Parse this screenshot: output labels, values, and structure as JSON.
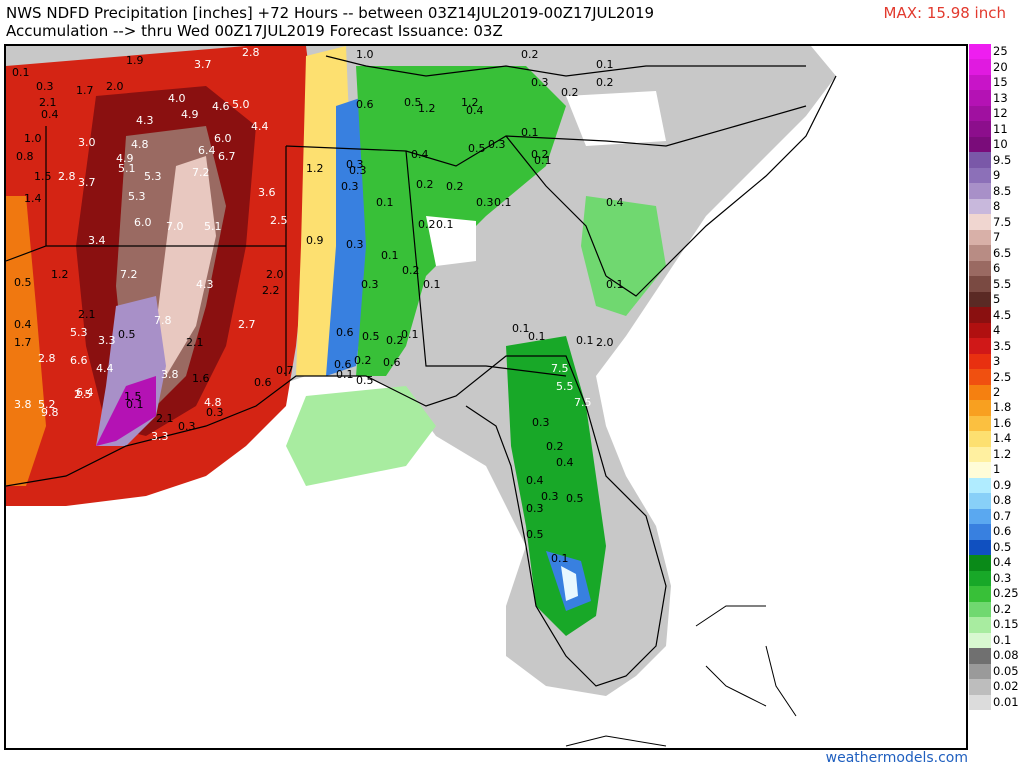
{
  "header": {
    "title_line1": "NWS NDFD Precipitation [inches] +72 Hours -- between 03Z14JUL2019-00Z17JUL2019",
    "title_line2": "Accumulation --> thru Wed 00Z17JUL2019   Forecast Issuance: 03Z",
    "max_label": "MAX: 15.98 inch"
  },
  "legend": {
    "entries": [
      {
        "label": "25",
        "color": "#ee1ef0"
      },
      {
        "label": "20",
        "color": "#e01ae0"
      },
      {
        "label": "15",
        "color": "#c814c8"
      },
      {
        "label": "13",
        "color": "#b412b4"
      },
      {
        "label": "12",
        "color": "#a010a0"
      },
      {
        "label": "11",
        "color": "#8c0e8c"
      },
      {
        "label": "10",
        "color": "#7a0c7a"
      },
      {
        "label": "9.5",
        "color": "#7a58a8"
      },
      {
        "label": "9",
        "color": "#8c70b8"
      },
      {
        "label": "8.5",
        "color": "#a890c8"
      },
      {
        "label": "8",
        "color": "#c8b8dc"
      },
      {
        "label": "7.5",
        "color": "#f0d6d0"
      },
      {
        "label": "7",
        "color": "#d8b0a8"
      },
      {
        "label": "6.5",
        "color": "#b88c84"
      },
      {
        "label": "6",
        "color": "#9a6a62"
      },
      {
        "label": "5.5",
        "color": "#7a4a42"
      },
      {
        "label": "5",
        "color": "#5a2a24"
      },
      {
        "label": "4.5",
        "color": "#8a1010"
      },
      {
        "label": "4",
        "color": "#b01010"
      },
      {
        "label": "3.5",
        "color": "#d01818"
      },
      {
        "label": "3",
        "color": "#e83010"
      },
      {
        "label": "2.5",
        "color": "#f05010"
      },
      {
        "label": "2",
        "color": "#f58010"
      },
      {
        "label": "1.8",
        "color": "#f8a020"
      },
      {
        "label": "1.6",
        "color": "#fbc040"
      },
      {
        "label": "1.4",
        "color": "#fde070"
      },
      {
        "label": "1.2",
        "color": "#fff0a0"
      },
      {
        "label": "1",
        "color": "#fffcd8"
      },
      {
        "label": "0.9",
        "color": "#b0ecff"
      },
      {
        "label": "0.8",
        "color": "#88d0f8"
      },
      {
        "label": "0.7",
        "color": "#5aa8f0"
      },
      {
        "label": "0.6",
        "color": "#3880e0"
      },
      {
        "label": "0.5",
        "color": "#1050c0"
      },
      {
        "label": "0.4",
        "color": "#0a8a18"
      },
      {
        "label": "0.3",
        "color": "#18a828"
      },
      {
        "label": "0.25",
        "color": "#38c038"
      },
      {
        "label": "0.2",
        "color": "#70d870"
      },
      {
        "label": "0.15",
        "color": "#a8eca0"
      },
      {
        "label": "0.1",
        "color": "#d8f8d0"
      },
      {
        "label": "0.08",
        "color": "#707070"
      },
      {
        "label": "0.05",
        "color": "#9a9a9a"
      },
      {
        "label": "0.02",
        "color": "#bdbdbd"
      },
      {
        "label": "0.01",
        "color": "#dcdcdc"
      }
    ]
  },
  "map_labels": [
    "0.1",
    "1.9",
    "3.7",
    "2.8",
    "1.0",
    "0.2",
    "0.1",
    "0.3",
    "2.0",
    "1.7",
    "2.1",
    "0.4",
    "0.5",
    "1.2",
    "4.0",
    "4.9",
    "4.6",
    "5.0",
    "4.4",
    "0.6",
    "1.2",
    "0.4",
    "0.3",
    "0.2",
    "0.2",
    "1.0",
    "3.0",
    "4.3",
    "4.8",
    "6.0",
    "6.4",
    "6.7",
    "0.5",
    "0.3",
    "0.1",
    "0.1",
    "0.8",
    "1.5",
    "2.8",
    "3.7",
    "4.9",
    "5.1",
    "5.3",
    "7.2",
    "3.6",
    "1.2",
    "0.3",
    "0.3",
    "0.4",
    "0.2",
    "0.2",
    "1.4",
    "5.3",
    "6.0",
    "7.0",
    "5.1",
    "2.5",
    "0.3",
    "0.1",
    "0.2",
    "0.1",
    "0.3",
    "0.1",
    "0.2",
    "0.4",
    "3.4",
    "0.9",
    "0.3",
    "0.1",
    "0.2",
    "1.2",
    "7.2",
    "4.3",
    "2.0",
    "2.2",
    "0.3",
    "0.1",
    "0.1",
    "0.5",
    "0.4",
    "2.1",
    "7.8",
    "2.7",
    "0.6",
    "0.5",
    "0.2",
    "0.1",
    "0.1",
    "0.1",
    "0.1",
    "2.0",
    "5.3",
    "3.3",
    "0.5",
    "1.7",
    "2.8",
    "6.6",
    "4.4",
    "2.1",
    "0.7",
    "0.6",
    "0.2",
    "0.1",
    "0.5",
    "7.5",
    "3.8",
    "1.6",
    "0.6",
    "0.6",
    "5.5",
    "6.4",
    "1.5",
    "3.8",
    "5.2",
    "9.8",
    "2.5",
    "0.1",
    "4.8",
    "7.5",
    "3.3",
    "2.1",
    "0.3",
    "0.3",
    "0.3",
    "0.2",
    "0.4",
    "0.4",
    "0.3",
    "0.3",
    "0.5",
    "0.5",
    "0.1"
  ],
  "credit": "weathermodels.com"
}
